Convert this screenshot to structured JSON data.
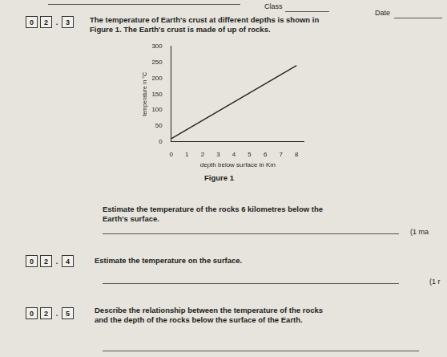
{
  "header": {
    "class_label": "Class",
    "date_label": "Date"
  },
  "intro": {
    "number": [
      "0",
      "2",
      ".",
      "3"
    ],
    "text": [
      "The temperature of Earth's crust at different depths is shown in",
      "Figure 1. The Earth's crust is made of up of rocks."
    ]
  },
  "chart_data": {
    "type": "line",
    "x_label": "depth below surface in Km",
    "y_label": "temperature in °C",
    "x": [
      0,
      8
    ],
    "values": [
      10,
      240
    ],
    "color": "#222222",
    "xlim": [
      0,
      8.5
    ],
    "xticks": [
      0,
      1,
      2,
      3,
      4,
      5,
      6,
      7,
      8
    ],
    "ylim": [
      0,
      300
    ],
    "yticks": [
      0,
      50,
      100,
      150,
      200,
      250,
      300
    ],
    "grid": false
  },
  "figure_caption": "Figure 1",
  "questions": [
    {
      "text": [
        "Estimate the temperature of the rocks 6 kilometres below the",
        "Earth's surface."
      ],
      "marks": "(1 ma"
    },
    {
      "number": [
        "0",
        "2",
        ".",
        "4"
      ],
      "text": [
        "Estimate the temperature on the surface."
      ],
      "marks": "(1 r"
    },
    {
      "number": [
        "0",
        "2",
        ".",
        "5"
      ],
      "text": [
        "Describe the relationship between the temperature of the rocks",
        "and the depth of the rocks below the surface of the Earth."
      ]
    }
  ]
}
